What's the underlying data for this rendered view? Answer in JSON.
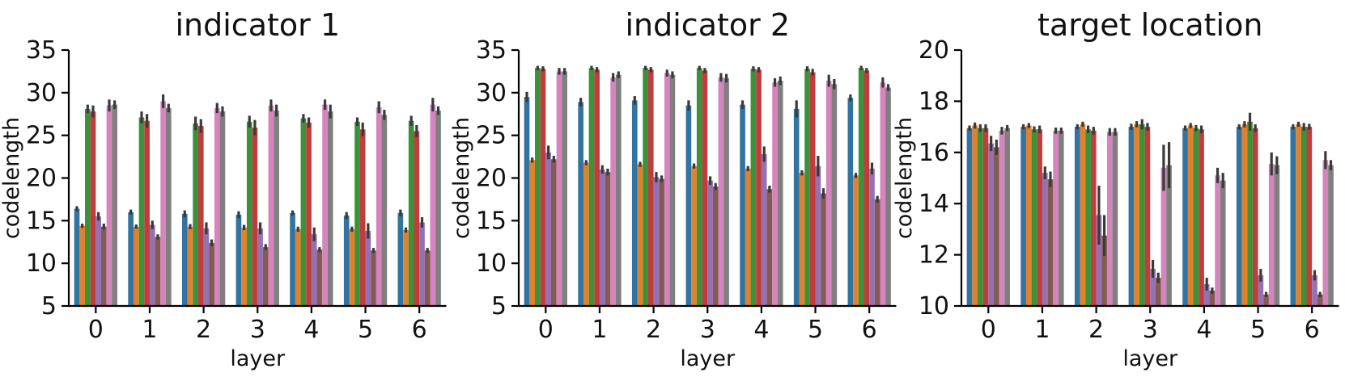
{
  "figure": {
    "background": "#ffffff",
    "text_color": "#111111",
    "axis_color": "#000000",
    "error_bar_color": "#3a3a3a"
  },
  "chart_data": [
    {
      "type": "bar",
      "title": "indicator 1",
      "xlabel": "layer",
      "ylabel": "codelength",
      "categories": [
        "0",
        "1",
        "2",
        "3",
        "4",
        "5",
        "6"
      ],
      "ylim": [
        5,
        35
      ],
      "yticks": [
        5,
        10,
        15,
        20,
        25,
        30,
        35
      ],
      "grid": false,
      "legend_position": "none",
      "series": [
        {
          "name": "blue",
          "color": "#3274a1",
          "values": [
            16.4,
            16.0,
            15.8,
            15.7,
            15.9,
            15.6,
            15.9
          ],
          "errors": [
            0.3,
            0.3,
            0.4,
            0.4,
            0.3,
            0.4,
            0.4
          ]
        },
        {
          "name": "orange",
          "color": "#e1812c",
          "values": [
            14.4,
            14.3,
            14.3,
            14.2,
            14.0,
            14.0,
            13.9
          ],
          "errors": [
            0.25,
            0.25,
            0.3,
            0.3,
            0.3,
            0.3,
            0.3
          ]
        },
        {
          "name": "green",
          "color": "#3a923a",
          "values": [
            28.1,
            27.1,
            26.4,
            26.6,
            27.0,
            26.6,
            26.7
          ],
          "errors": [
            0.5,
            0.7,
            0.8,
            0.7,
            0.5,
            0.5,
            0.6
          ]
        },
        {
          "name": "red",
          "color": "#c03d3e",
          "values": [
            27.8,
            26.7,
            26.1,
            25.9,
            26.5,
            25.7,
            25.5
          ],
          "errors": [
            0.7,
            0.8,
            0.8,
            0.9,
            0.6,
            0.8,
            0.7
          ]
        },
        {
          "name": "purple",
          "color": "#9372b2",
          "values": [
            15.5,
            14.5,
            14.1,
            14.1,
            13.4,
            13.8,
            14.8
          ],
          "errors": [
            0.5,
            0.5,
            0.7,
            0.7,
            0.8,
            0.9,
            0.6
          ]
        },
        {
          "name": "brown",
          "color": "#845b53",
          "values": [
            14.3,
            13.1,
            12.4,
            11.9,
            11.6,
            11.5,
            11.5
          ],
          "errors": [
            0.35,
            0.3,
            0.4,
            0.35,
            0.3,
            0.3,
            0.3
          ]
        },
        {
          "name": "pink",
          "color": "#d684bd",
          "values": [
            28.5,
            29.0,
            28.2,
            28.5,
            28.6,
            28.3,
            28.6
          ],
          "errors": [
            0.7,
            0.8,
            0.6,
            0.7,
            0.6,
            0.7,
            0.8
          ]
        },
        {
          "name": "gray",
          "color": "#7f7f7f",
          "values": [
            28.6,
            28.2,
            27.8,
            27.9,
            27.8,
            27.4,
            27.9
          ],
          "errors": [
            0.5,
            0.5,
            0.6,
            0.7,
            0.8,
            0.6,
            0.5
          ]
        }
      ]
    },
    {
      "type": "bar",
      "title": "indicator 2",
      "xlabel": "layer",
      "ylabel": "codelength",
      "categories": [
        "0",
        "1",
        "2",
        "3",
        "4",
        "5",
        "6"
      ],
      "ylim": [
        5,
        35
      ],
      "yticks": [
        5,
        10,
        15,
        20,
        25,
        30,
        35
      ],
      "grid": false,
      "legend_position": "none",
      "series": [
        {
          "name": "blue",
          "color": "#3274a1",
          "values": [
            29.5,
            28.9,
            29.1,
            28.5,
            28.6,
            28.1,
            29.4
          ],
          "errors": [
            0.6,
            0.5,
            0.5,
            0.6,
            0.5,
            1.0,
            0.4
          ]
        },
        {
          "name": "orange",
          "color": "#e1812c",
          "values": [
            22.1,
            21.8,
            21.6,
            21.4,
            21.1,
            20.6,
            20.3
          ],
          "errors": [
            0.3,
            0.3,
            0.3,
            0.3,
            0.3,
            0.3,
            0.3
          ]
        },
        {
          "name": "green",
          "color": "#3a923a",
          "values": [
            32.9,
            32.9,
            32.9,
            32.9,
            32.8,
            32.8,
            32.9
          ],
          "errors": [
            0.25,
            0.25,
            0.25,
            0.25,
            0.3,
            0.3,
            0.25
          ]
        },
        {
          "name": "red",
          "color": "#c03d3e",
          "values": [
            32.8,
            32.7,
            32.7,
            32.6,
            32.7,
            32.4,
            32.6
          ],
          "errors": [
            0.3,
            0.3,
            0.3,
            0.3,
            0.3,
            0.4,
            0.3
          ]
        },
        {
          "name": "purple",
          "color": "#9372b2",
          "values": [
            23.0,
            21.0,
            20.1,
            19.7,
            22.8,
            21.4,
            21.1
          ],
          "errors": [
            0.8,
            0.5,
            0.6,
            0.5,
            0.9,
            1.2,
            0.7
          ]
        },
        {
          "name": "brown",
          "color": "#845b53",
          "values": [
            22.2,
            20.7,
            19.9,
            19.0,
            18.7,
            18.2,
            17.5
          ],
          "errors": [
            0.4,
            0.4,
            0.4,
            0.4,
            0.4,
            0.6,
            0.4
          ]
        },
        {
          "name": "pink",
          "color": "#d684bd",
          "values": [
            32.5,
            31.8,
            32.3,
            31.8,
            31.2,
            31.4,
            31.2
          ],
          "errors": [
            0.4,
            0.5,
            0.4,
            0.5,
            0.5,
            0.7,
            0.6
          ]
        },
        {
          "name": "gray",
          "color": "#7f7f7f",
          "values": [
            32.5,
            32.1,
            32.1,
            31.7,
            31.4,
            31.0,
            30.6
          ],
          "errors": [
            0.4,
            0.4,
            0.4,
            0.5,
            0.5,
            0.6,
            0.4
          ]
        }
      ]
    },
    {
      "type": "bar",
      "title": "target location",
      "xlabel": "layer",
      "ylabel": "codelength",
      "categories": [
        "0",
        "1",
        "2",
        "3",
        "4",
        "5",
        "6"
      ],
      "ylim": [
        10,
        20
      ],
      "yticks": [
        10,
        12,
        14,
        16,
        18,
        20
      ],
      "grid": false,
      "legend_position": "none",
      "series": [
        {
          "name": "blue",
          "color": "#3274a1",
          "values": [
            16.95,
            17.0,
            17.0,
            17.0,
            16.95,
            17.0,
            17.0
          ],
          "errors": [
            0.1,
            0.1,
            0.1,
            0.12,
            0.1,
            0.1,
            0.1
          ]
        },
        {
          "name": "orange",
          "color": "#e1812c",
          "values": [
            17.05,
            17.05,
            17.1,
            17.1,
            17.05,
            17.1,
            17.1
          ],
          "errors": [
            0.12,
            0.1,
            0.1,
            0.12,
            0.1,
            0.12,
            0.1
          ]
        },
        {
          "name": "green",
          "color": "#3a923a",
          "values": [
            16.95,
            16.9,
            16.9,
            17.1,
            16.95,
            17.2,
            17.0
          ],
          "errors": [
            0.15,
            0.12,
            0.15,
            0.2,
            0.12,
            0.35,
            0.15
          ]
        },
        {
          "name": "red",
          "color": "#c03d3e",
          "values": [
            16.95,
            16.9,
            16.85,
            17.0,
            16.9,
            16.95,
            17.0
          ],
          "errors": [
            0.15,
            0.15,
            0.15,
            0.15,
            0.15,
            0.15,
            0.12
          ]
        },
        {
          "name": "purple",
          "color": "#9372b2",
          "values": [
            16.35,
            15.2,
            13.55,
            11.45,
            10.85,
            11.2,
            11.2
          ],
          "errors": [
            0.3,
            0.25,
            1.15,
            0.35,
            0.25,
            0.25,
            0.2
          ]
        },
        {
          "name": "brown",
          "color": "#845b53",
          "values": [
            16.2,
            14.95,
            12.75,
            11.1,
            10.6,
            10.45,
            10.45
          ],
          "errors": [
            0.3,
            0.3,
            0.8,
            0.2,
            0.12,
            0.1,
            0.1
          ]
        },
        {
          "name": "pink",
          "color": "#d684bd",
          "values": [
            16.85,
            16.85,
            16.8,
            15.4,
            15.1,
            15.55,
            15.7
          ],
          "errors": [
            0.15,
            0.12,
            0.15,
            0.9,
            0.3,
            0.45,
            0.35
          ]
        },
        {
          "name": "gray",
          "color": "#7f7f7f",
          "values": [
            16.95,
            16.85,
            16.8,
            15.5,
            14.9,
            15.5,
            15.5
          ],
          "errors": [
            0.12,
            0.12,
            0.15,
            0.9,
            0.3,
            0.35,
            0.2
          ]
        }
      ]
    }
  ]
}
